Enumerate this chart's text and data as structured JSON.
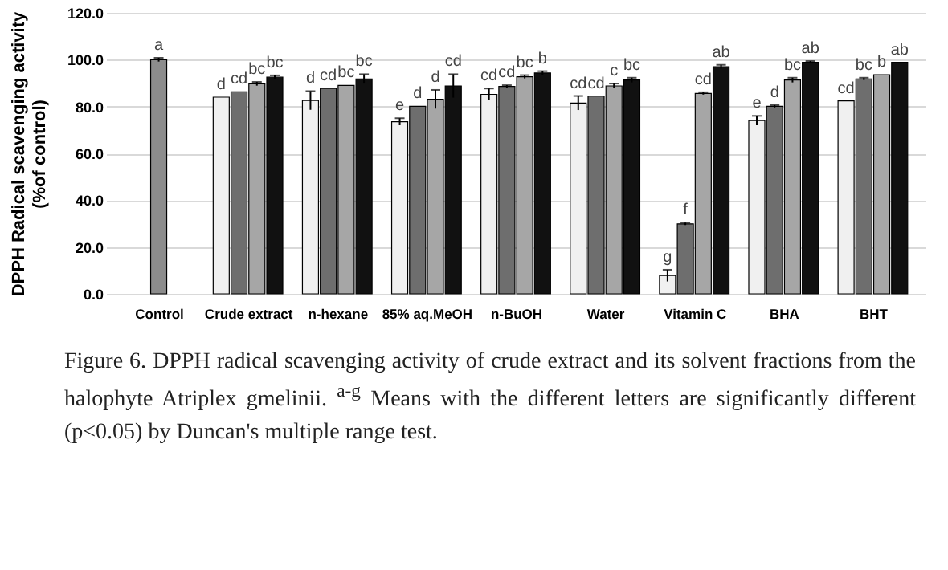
{
  "chart_data": {
    "type": "bar",
    "ylabel": "DPPH Radical scavenging activity\n(%of control)",
    "categories": [
      "Control",
      "Crude extract",
      "n-hexane",
      "85% aq.MeOH",
      "n-BuOH",
      "Water",
      "Vitamin C",
      "BHA",
      "BHT"
    ],
    "series": [
      {
        "color": "#8c8c8c",
        "values": [
          100,
          null,
          null,
          null,
          null,
          null,
          null,
          null,
          null
        ],
        "errors": [
          0.8,
          null,
          null,
          null,
          null,
          null,
          null,
          null,
          null
        ],
        "value_labels": [
          "a",
          null,
          null,
          null,
          null,
          null,
          null,
          null,
          null
        ]
      },
      {
        "color": "#f0f0f0",
        "values": [
          null,
          84.0,
          82.6,
          73.5,
          85.2,
          81.5,
          7.8,
          74.0,
          82.4
        ],
        "errors": [
          null,
          null,
          4,
          1.5,
          2.5,
          3,
          2.5,
          2,
          null
        ],
        "value_labels": [
          null,
          "d",
          "d",
          "e",
          "cd",
          "cd",
          "g",
          "e",
          "cd"
        ]
      },
      {
        "color": "#6e6e6e",
        "values": [
          null,
          86.3,
          87.7,
          80.1,
          88.6,
          84.5,
          29.9,
          80.1,
          91.8
        ],
        "errors": [
          null,
          null,
          null,
          null,
          0.5,
          null,
          0.5,
          0.5,
          0.5
        ],
        "value_labels": [
          null,
          "cd",
          "cd",
          "d",
          "cd",
          "cd",
          "f",
          "d",
          "bc"
        ]
      },
      {
        "color": "#a6a6a6",
        "values": [
          null,
          89.7,
          89.0,
          83.1,
          92.7,
          88.8,
          85.6,
          91.3,
          93.6
        ],
        "errors": [
          null,
          0.8,
          null,
          4,
          0.7,
          1,
          0.5,
          1,
          null
        ],
        "value_labels": [
          null,
          "bc",
          "bc",
          "d",
          "bc",
          "c",
          "cd",
          "bc",
          "b"
        ]
      },
      {
        "color": "#111111",
        "values": [
          null,
          92.5,
          91.8,
          88.8,
          94.3,
          91.3,
          97.0,
          98.9,
          98.9
        ],
        "errors": [
          null,
          0.8,
          2,
          5,
          0.8,
          1,
          0.8,
          0.5,
          null
        ],
        "value_labels": [
          null,
          "bc",
          "bc",
          "cd",
          "b",
          "bc",
          "ab",
          "ab",
          "ab"
        ]
      }
    ],
    "ylim": [
      0,
      120
    ],
    "yticks": [
      {
        "value": 0,
        "label": "0.0"
      },
      {
        "value": 20,
        "label": "20.0"
      },
      {
        "value": 40,
        "label": "40.0"
      },
      {
        "value": 60,
        "label": "60.0"
      },
      {
        "value": 80,
        "label": "80.0"
      },
      {
        "value": 100,
        "label": "100.0"
      },
      {
        "value": 120,
        "label": "120.0"
      }
    ],
    "grid": "y",
    "annotations": [
      "Figure 6.  DPPH radical scavenging activity of crude extract and its solvent fractions from the halophyte Atriplex gmelinii. $^{a-g}$ Means with the different letters are significantly different (p<0.05) by Duncan's multiple range test."
    ]
  }
}
